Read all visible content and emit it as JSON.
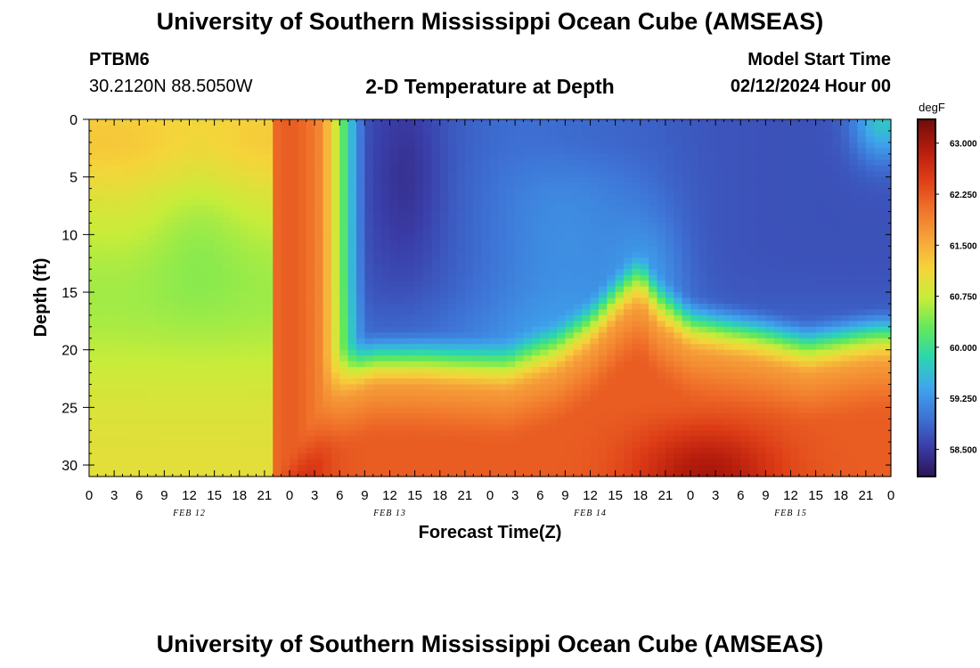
{
  "header": {
    "title": "University of Southern Mississippi Ocean Cube (AMSEAS)",
    "footer_title": "University of Southern Mississippi Ocean Cube (AMSEAS)",
    "station": "PTBM6",
    "coords": "30.2120N  88.5050W",
    "plot_title": "2-D Temperature at Depth",
    "model_start_label": "Model Start Time",
    "model_start_value": "02/12/2024 Hour 00"
  },
  "chart_data": {
    "type": "heatmap",
    "title": "2-D Temperature at Depth",
    "xlabel": "Forecast Time(Z)",
    "ylabel": "Depth (ft)",
    "x_range_hours": [
      0,
      96
    ],
    "y_range_ft": [
      0,
      31
    ],
    "x_tick_labels": [
      "0",
      "3",
      "6",
      "9",
      "12",
      "15",
      "18",
      "21",
      "0",
      "3",
      "6",
      "9",
      "12",
      "15",
      "18",
      "21",
      "0",
      "3",
      "6",
      "9",
      "12",
      "15",
      "18",
      "21",
      "0",
      "3",
      "6",
      "9",
      "12",
      "15",
      "18",
      "21",
      "0"
    ],
    "y_ticks": [
      0,
      5,
      10,
      15,
      20,
      25,
      30
    ],
    "day_labels": [
      {
        "label": "FEB 12",
        "hour": 12
      },
      {
        "label": "FEB 13",
        "hour": 36
      },
      {
        "label": "FEB 14",
        "hour": 60
      },
      {
        "label": "FEB 15",
        "hour": 84
      }
    ],
    "colorbar": {
      "units": "degF",
      "min": 58.1,
      "max": 63.35,
      "tick_labels": [
        "63.000",
        "62.250",
        "61.500",
        "60.750",
        "60.000",
        "59.250",
        "58.500"
      ],
      "tick_values": [
        63.0,
        62.25,
        61.5,
        60.75,
        60.0,
        59.25,
        58.5
      ],
      "colors": [
        "#2b1456",
        "#3a3da8",
        "#3e74d6",
        "#3ea6ee",
        "#2bd6b0",
        "#62e95a",
        "#c8ec3a",
        "#f5d43a",
        "#f6a23a",
        "#f0712a",
        "#dd3c16",
        "#b41b0c",
        "#6f0d0a"
      ]
    },
    "description_points": {
      "surface_cold_min_degF": 58.3,
      "bottom_warm_max_degF": 63.2,
      "nearshore_warm_plume_hours": [
        0,
        24
      ],
      "cold_layer_base_depth_ft": 22
    }
  }
}
